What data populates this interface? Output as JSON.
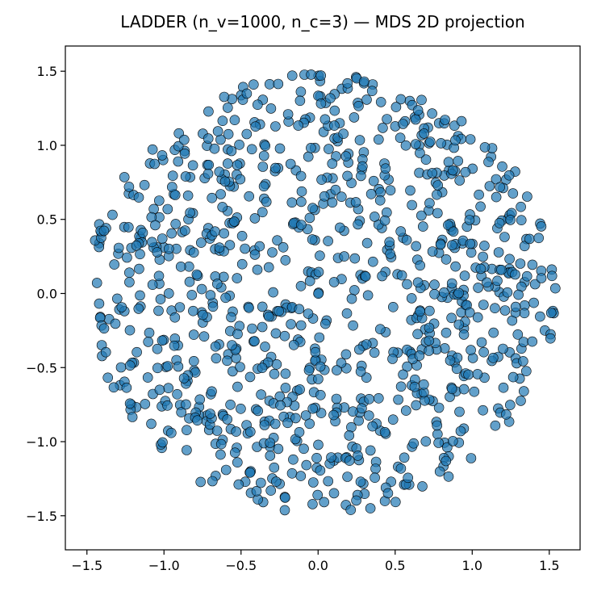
{
  "chart_data": {
    "type": "scatter",
    "title": "LADDER (n_v=1000, n_c=3) — MDS 2D projection",
    "xlabel": "",
    "ylabel": "",
    "xlim": [
      -1.64,
      1.7
    ],
    "ylim": [
      -1.73,
      1.67
    ],
    "grid": false,
    "legend": "none",
    "point_color": "#1f77b4",
    "x_ticks": [
      -1.5,
      -1.0,
      -0.5,
      0.0,
      0.5,
      1.0,
      1.5
    ],
    "x_tick_labels": [
      "−1.5",
      "−1.0",
      "−0.5",
      "0.0",
      "0.5",
      "1.0",
      "1.5"
    ],
    "y_ticks": [
      -1.5,
      -1.0,
      -0.5,
      0.0,
      0.5,
      1.0,
      1.5
    ],
    "y_tick_labels": [
      "−1.5",
      "−1.0",
      "−0.5",
      "0.0",
      "0.5",
      "1.0",
      "1.5"
    ],
    "n_points": 1000,
    "points_note": "approx 1000 points, roughly uniform within a disc of radius ~1.55 centered near (0,0)"
  }
}
